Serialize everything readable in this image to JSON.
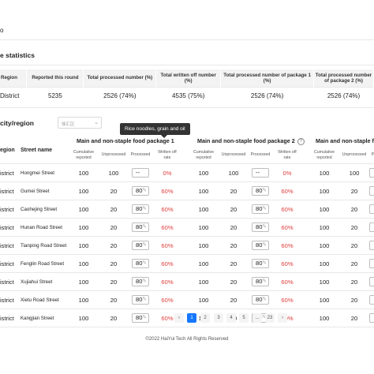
{
  "page": {
    "top_fragment": "o"
  },
  "stats": {
    "section_title": "e statistics",
    "headers": [
      "Region",
      "Reported this round",
      "Total processed number (%)",
      "Total written off number (%)",
      "Total processed number of package 1 (%)",
      "Total processed number of package 2 (%)"
    ],
    "row": [
      "District",
      "5235",
      "2526  (74%)",
      "4535  (75%)",
      "2526  (74%)",
      "2526  (74%)"
    ]
  },
  "detail": {
    "section_title": "city/region",
    "filter_value": "徐汇区",
    "tooltip": "Rice noodles, grain and oil",
    "col_region": "egion",
    "col_street": "Street name",
    "package1_title": "Main and non-staple food package 1",
    "package2_title": "Main and non-staple food package 2",
    "package3_title": "Main and non-staple foo",
    "sub_headers": [
      "Cumulative reported",
      "Unprocessed",
      "Processed",
      "Written off rate"
    ],
    "rows": [
      {
        "region": "istrict",
        "street": "Hongmei Street",
        "p1": [
          "100",
          "100",
          "--",
          "0%"
        ],
        "p2": [
          "100",
          "100",
          "--",
          "0%"
        ],
        "p3": [
          "100",
          "100"
        ]
      },
      {
        "region": "istrict",
        "street": "Gumei Street",
        "p1": [
          "100",
          "20",
          "80",
          "60%"
        ],
        "p2": [
          "100",
          "20",
          "80",
          "60%"
        ],
        "p3": [
          "100",
          "20"
        ]
      },
      {
        "region": "istrict",
        "street": "Caohejing Street",
        "p1": [
          "100",
          "20",
          "80",
          "60%"
        ],
        "p2": [
          "100",
          "20",
          "80",
          "60%"
        ],
        "p3": [
          "100",
          "20"
        ]
      },
      {
        "region": "istrict",
        "street": "Hunan Road Street",
        "p1": [
          "100",
          "20",
          "80",
          "60%"
        ],
        "p2": [
          "100",
          "20",
          "80",
          "60%"
        ],
        "p3": [
          "100",
          "20"
        ]
      },
      {
        "region": "istrict",
        "street": "Tianping Road Street",
        "p1": [
          "100",
          "20",
          "80",
          "60%"
        ],
        "p2": [
          "100",
          "20",
          "80",
          "60%"
        ],
        "p3": [
          "100",
          "20"
        ]
      },
      {
        "region": "istrict",
        "street": "Fenglin Road Street",
        "p1": [
          "100",
          "20",
          "80",
          "60%"
        ],
        "p2": [
          "100",
          "20",
          "80",
          "60%"
        ],
        "p3": [
          "100",
          "20"
        ]
      },
      {
        "region": "istrict",
        "street": "Xujiahui Street",
        "p1": [
          "100",
          "20",
          "80",
          "60%"
        ],
        "p2": [
          "100",
          "20",
          "80",
          "60%"
        ],
        "p3": [
          "100",
          "20"
        ]
      },
      {
        "region": "istrict",
        "street": "Xietu Road Street",
        "p1": [
          "100",
          "20",
          "80",
          "60%"
        ],
        "p2": [
          "100",
          "20",
          "80",
          "60%"
        ],
        "p3": [
          "100",
          "20"
        ]
      },
      {
        "region": "istrict",
        "street": "Kangjian Street",
        "p1": [
          "100",
          "20",
          "80",
          "60%"
        ],
        "p2": [
          "100",
          "20",
          "80",
          "60%"
        ],
        "p3": [
          "100",
          "20"
        ]
      }
    ]
  },
  "pagination": {
    "prev": "‹",
    "pages": [
      "1",
      "2",
      "3",
      "4",
      "5",
      "...",
      "23"
    ],
    "next": "›",
    "active": "1"
  },
  "footer": "©2022 HaiYui Tech All Rights Reserved",
  "colors": {
    "accent": "#1677ff",
    "alert": "#e03c3c"
  }
}
